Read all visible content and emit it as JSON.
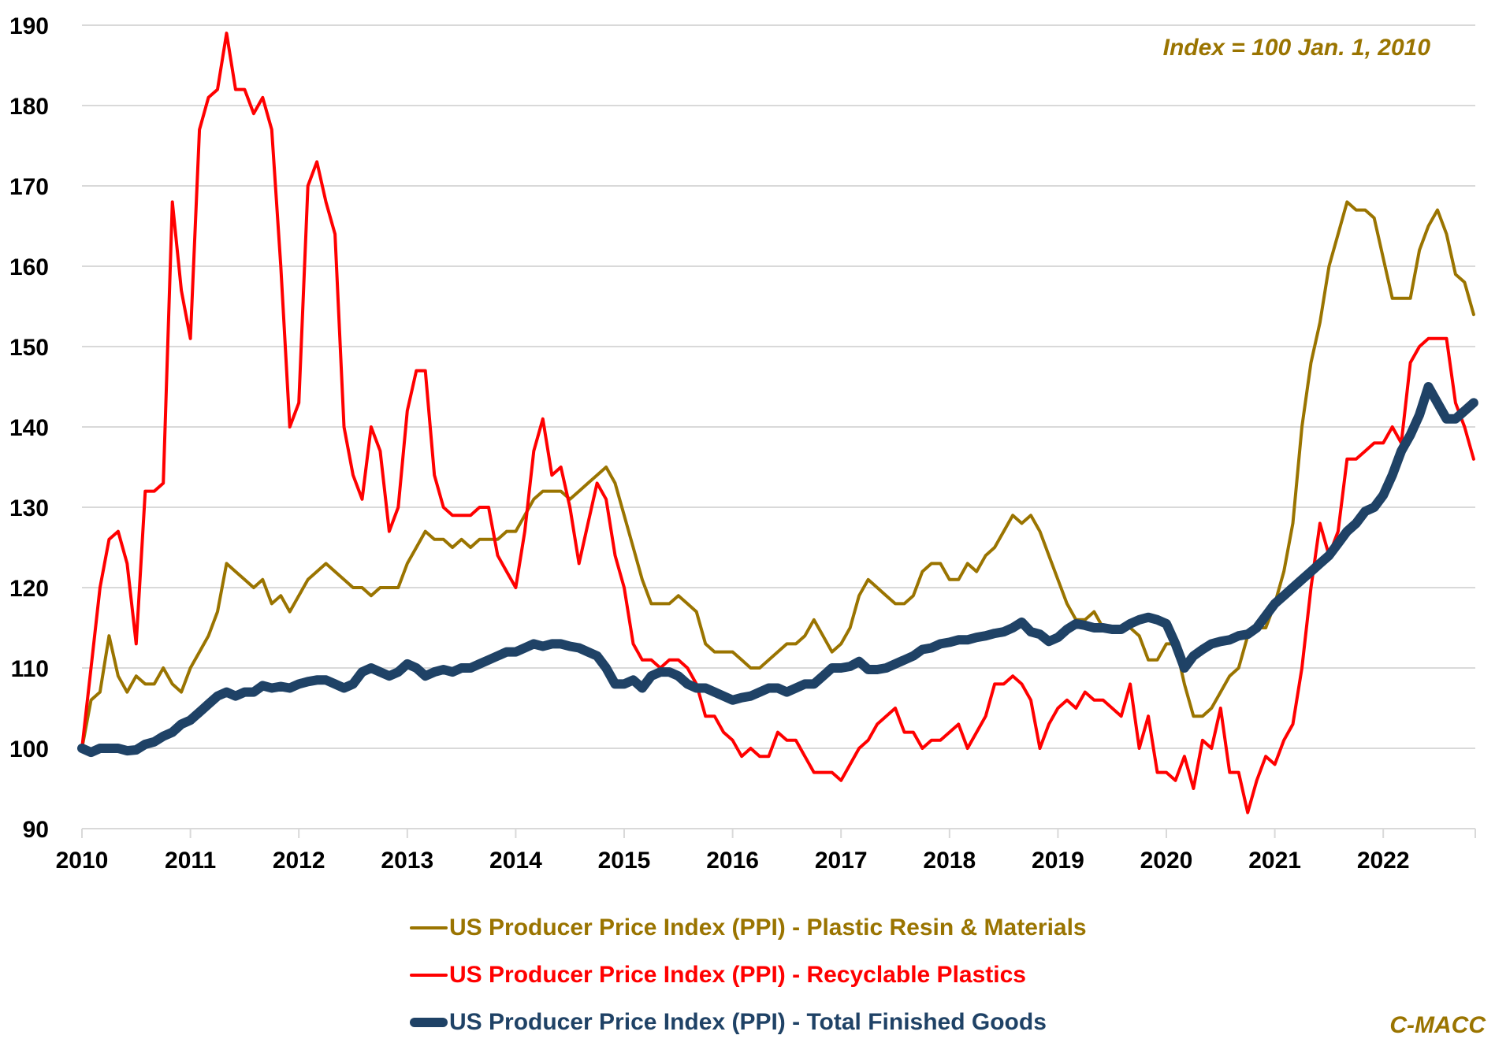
{
  "chart_data": {
    "type": "line",
    "title": "",
    "annotation": "Index = 100 Jan. 1, 2010",
    "credit": "C-MACC",
    "xlabel": "",
    "ylabel": "",
    "ylim": [
      90,
      190
    ],
    "yticks": [
      90,
      100,
      110,
      120,
      130,
      140,
      150,
      160,
      170,
      180,
      190
    ],
    "x_start": "2010-01",
    "x_frequency": "monthly",
    "xticks": [
      "2010",
      "2011",
      "2012",
      "2013",
      "2014",
      "2015",
      "2016",
      "2017",
      "2018",
      "2019",
      "2020",
      "2021",
      "2022"
    ],
    "grid": true,
    "legend_position": "bottom",
    "series": [
      {
        "name": "US Producer Price Index (PPI) - Plastic Resin & Materials",
        "color": "#9a7400",
        "values": [
          100,
          106,
          107,
          114,
          109,
          107,
          109,
          108,
          108,
          110,
          108,
          107,
          110,
          112,
          114,
          117,
          123,
          122,
          121,
          120,
          121,
          118,
          119,
          117,
          119,
          121,
          122,
          123,
          122,
          121,
          120,
          120,
          119,
          120,
          120,
          120,
          123,
          125,
          127,
          126,
          126,
          125,
          126,
          125,
          126,
          126,
          126,
          127,
          127,
          129,
          131,
          132,
          132,
          132,
          131,
          132,
          133,
          134,
          135,
          133,
          129,
          125,
          121,
          118,
          118,
          118,
          119,
          118,
          117,
          113,
          112,
          112,
          112,
          111,
          110,
          110,
          111,
          112,
          113,
          113,
          114,
          116,
          114,
          112,
          113,
          115,
          119,
          121,
          120,
          119,
          118,
          118,
          119,
          122,
          123,
          123,
          121,
          121,
          123,
          122,
          124,
          125,
          127,
          129,
          128,
          129,
          127,
          124,
          121,
          118,
          116,
          116,
          117,
          115,
          115,
          115,
          115,
          114,
          111,
          111,
          113,
          113,
          108,
          104,
          104,
          105,
          107,
          109,
          110,
          114,
          115,
          115,
          118,
          122,
          128,
          140,
          148,
          153,
          160,
          164,
          168,
          167,
          167,
          166,
          161,
          156,
          156,
          156,
          162,
          165,
          167,
          164,
          159,
          158,
          154
        ]
      },
      {
        "name": "US Producer Price Index (PPI) - Recyclable Plastics",
        "color": "#ff0000",
        "values": [
          100,
          110,
          120,
          126,
          127,
          123,
          113,
          132,
          132,
          133,
          168,
          157,
          151,
          177,
          181,
          182,
          189,
          182,
          182,
          179,
          181,
          177,
          160,
          140,
          143,
          170,
          173,
          168,
          164,
          140,
          134,
          131,
          140,
          137,
          127,
          130,
          142,
          147,
          147,
          134,
          130,
          129,
          129,
          129,
          130,
          130,
          124,
          122,
          120,
          127,
          137,
          141,
          134,
          135,
          130,
          123,
          128,
          133,
          131,
          124,
          120,
          113,
          111,
          111,
          110,
          111,
          111,
          110,
          108,
          104,
          104,
          102,
          101,
          99,
          100,
          99,
          99,
          102,
          101,
          101,
          99,
          97,
          97,
          97,
          96,
          98,
          100,
          101,
          103,
          104,
          105,
          102,
          102,
          100,
          101,
          101,
          102,
          103,
          100,
          102,
          104,
          108,
          108,
          109,
          108,
          106,
          100,
          103,
          105,
          106,
          105,
          107,
          106,
          106,
          105,
          104,
          108,
          100,
          104,
          97,
          97,
          96,
          99,
          95,
          101,
          100,
          105,
          97,
          97,
          92,
          96,
          99,
          98,
          101,
          103,
          110,
          120,
          128,
          124,
          127,
          136,
          136,
          137,
          138,
          138,
          140,
          138,
          148,
          150,
          151,
          151,
          151,
          143,
          140,
          136
        ]
      },
      {
        "name": "US Producer Price Index (PPI) - Total Finished Goods",
        "color": "#1f4266",
        "values": [
          100,
          99.5,
          100,
          100,
          100,
          99.7,
          99.8,
          100.5,
          100.8,
          101.5,
          102,
          103,
          103.5,
          104.5,
          105.5,
          106.5,
          107,
          106.5,
          107,
          107,
          107.8,
          107.5,
          107.7,
          107.5,
          108,
          108.3,
          108.5,
          108.5,
          108,
          107.5,
          108,
          109.5,
          110,
          109.5,
          109,
          109.5,
          110.5,
          110,
          109,
          109.5,
          109.8,
          109.5,
          110,
          110,
          110.5,
          111,
          111.5,
          112,
          112,
          112.5,
          113,
          112.7,
          113,
          113,
          112.7,
          112.5,
          112,
          111.5,
          110,
          108,
          108,
          108.5,
          107.5,
          109,
          109.5,
          109.5,
          109,
          108,
          107.5,
          107.5,
          107,
          106.5,
          106,
          106.3,
          106.5,
          107,
          107.5,
          107.5,
          107,
          107.5,
          108,
          108,
          109,
          110,
          110,
          110.2,
          110.8,
          109.8,
          109.8,
          110,
          110.5,
          111,
          111.5,
          112.3,
          112.5,
          113,
          113.2,
          113.5,
          113.5,
          113.8,
          114,
          114.3,
          114.5,
          115,
          115.7,
          114.5,
          114.2,
          113.3,
          113.8,
          114.8,
          115.5,
          115.3,
          115,
          115,
          114.8,
          114.8,
          115.5,
          116,
          116.3,
          116,
          115.5,
          113,
          110,
          111.5,
          112.3,
          113,
          113.3,
          113.5,
          114,
          114.2,
          115,
          116.5,
          118,
          119,
          120,
          121,
          122,
          123,
          124,
          125.5,
          127,
          128,
          129.5,
          130,
          131.5,
          134,
          137,
          139,
          141.5,
          145,
          143,
          141,
          141,
          142,
          143
        ]
      }
    ]
  }
}
